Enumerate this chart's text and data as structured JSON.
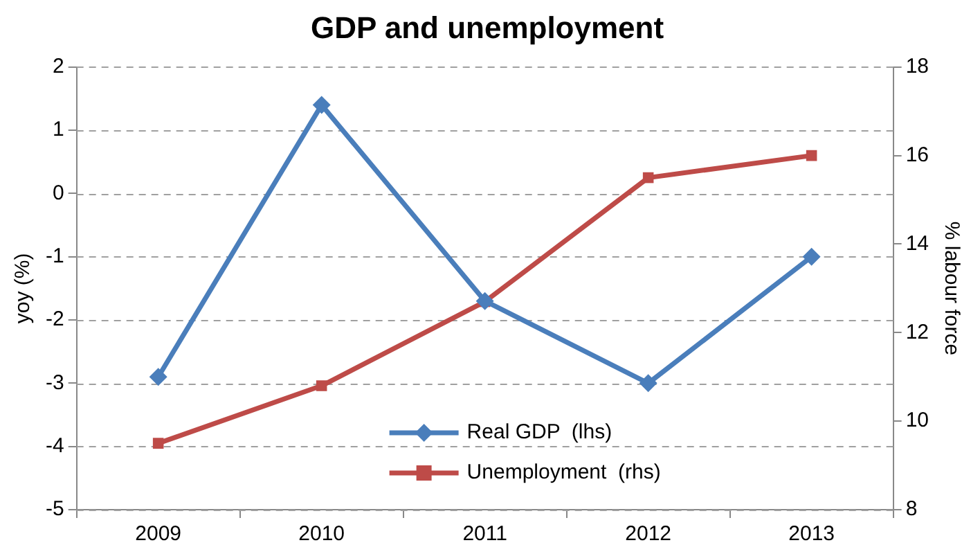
{
  "chart_data": {
    "type": "line",
    "title": "GDP and unemployment",
    "ylabel": "yoy (%)",
    "y2label": "% labour force",
    "categories": [
      "2009",
      "2010",
      "2011",
      "2012",
      "2013"
    ],
    "series": [
      {
        "name": "Real GDP  (lhs)",
        "color": "#4a7ebb",
        "values": [
          -2.9,
          1.4,
          -1.7,
          -3.0,
          -1.0
        ],
        "marker": "diamond"
      },
      {
        "name": "Unemployment  (rhs)",
        "color": "#be4b48",
        "values": [
          9.5,
          10.8,
          12.7,
          15.5,
          16.0
        ],
        "marker": "square",
        "axis": "y2"
      }
    ],
    "ylim": [
      -5,
      2
    ],
    "yticks": [
      -5,
      -4,
      -3,
      -2,
      -1,
      0,
      1,
      2
    ],
    "y2lim": [
      8,
      18
    ],
    "y2ticks": [
      8,
      10,
      12,
      14,
      16,
      18
    ],
    "grid": "y",
    "legend": "bottom",
    "line_style": "solid"
  }
}
